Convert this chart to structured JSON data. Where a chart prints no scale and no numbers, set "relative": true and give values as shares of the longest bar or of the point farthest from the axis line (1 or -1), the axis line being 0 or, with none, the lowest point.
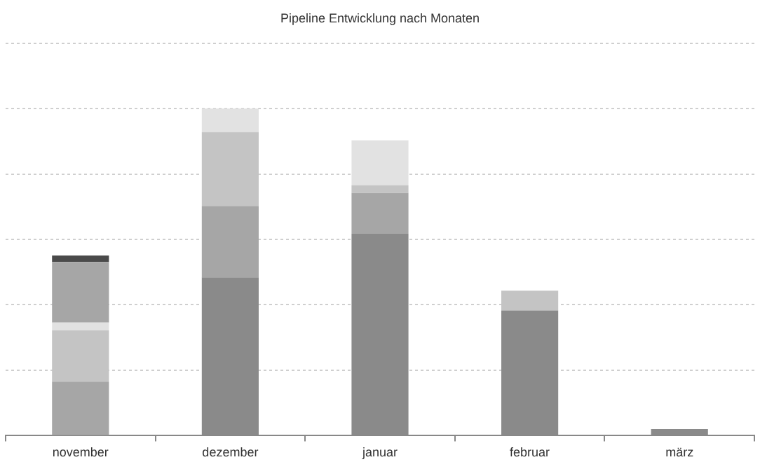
{
  "chart_data": {
    "type": "bar",
    "title": "Pipeline Entwicklung nach Monaten",
    "categories": [
      "november",
      "dezember",
      "januar",
      "februar",
      "märz"
    ],
    "stacked": true,
    "relative": true,
    "grid": "y",
    "legend": false,
    "series": [
      {
        "color": "#8a8a8a",
        "values": [
          null,
          0.484,
          0.617,
          0.383,
          0.02
        ]
      },
      {
        "color": "#a6a6a6",
        "values": [
          0.165,
          0.218,
          0.125,
          0,
          0
        ]
      },
      {
        "color": "#c4c4c4",
        "values": [
          0.157,
          0.226,
          0.024,
          0.06,
          0
        ]
      },
      {
        "color": "#e2e2e2",
        "values": [
          0.024,
          0.072,
          0.137,
          0,
          0
        ]
      },
      {
        "color": "#a6a6a6",
        "values": [
          0.185,
          0,
          0,
          0,
          0
        ]
      },
      {
        "color": "#4a4a4a",
        "values": [
          0.02,
          0,
          0,
          0,
          0
        ]
      }
    ]
  }
}
